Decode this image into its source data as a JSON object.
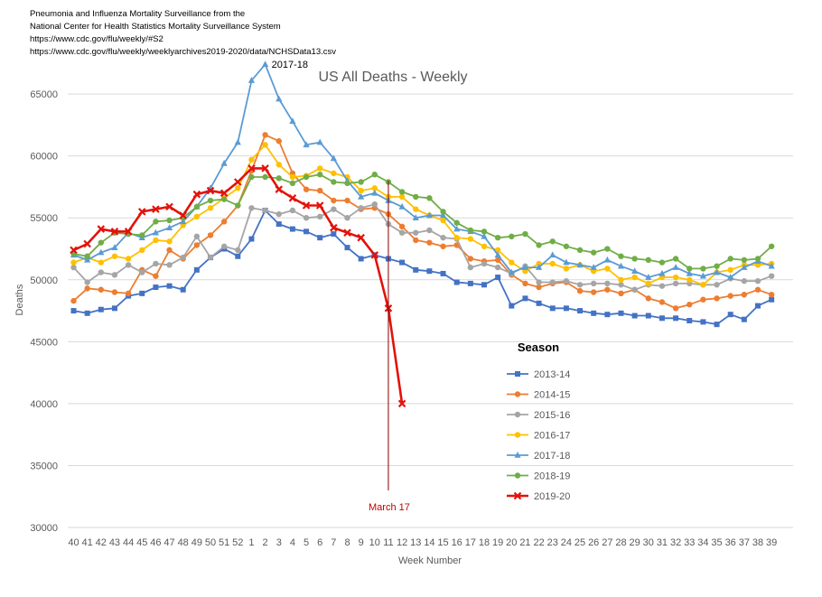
{
  "source": {
    "lines": [
      "Pneumonia and Influenza Mortality Surveillance from the",
      "National Center for Health Statistics Mortality Surveillance System",
      "https://www.cdc.gov/flu/weekly/#S2",
      "https://www.cdc.gov/flu/weekly/weeklyarchives2019-2020/data/NCHSData13.csv"
    ]
  },
  "chart_data": {
    "type": "line",
    "title": "US All Deaths - Weekly",
    "xlabel": "Week Number",
    "ylabel": "Deaths",
    "ylim": [
      30000,
      68000
    ],
    "yticks": [
      30000,
      35000,
      40000,
      45000,
      50000,
      55000,
      60000,
      65000
    ],
    "categories": [
      "40",
      "41",
      "42",
      "43",
      "44",
      "45",
      "46",
      "47",
      "48",
      "49",
      "50",
      "51",
      "52",
      "1",
      "2",
      "3",
      "4",
      "5",
      "6",
      "7",
      "8",
      "9",
      "10",
      "11",
      "12",
      "13",
      "14",
      "15",
      "16",
      "17",
      "18",
      "19",
      "20",
      "21",
      "22",
      "23",
      "24",
      "25",
      "26",
      "27",
      "28",
      "29",
      "30",
      "31",
      "32",
      "33",
      "34",
      "35",
      "36",
      "37",
      "38",
      "39"
    ],
    "legend_title": "Season",
    "legend_position": "right",
    "grid": true,
    "series": [
      {
        "name": "2013-14",
        "color": "#4472C4",
        "marker": "square",
        "values": [
          47500,
          47300,
          47600,
          47700,
          48700,
          48900,
          49400,
          49500,
          49200,
          50800,
          51800,
          52500,
          51900,
          53300,
          55600,
          54500,
          54100,
          53900,
          53400,
          53700,
          52600,
          51700,
          52000,
          51700,
          51400,
          50800,
          50700,
          50500,
          49800,
          49700,
          49600,
          50200,
          47900,
          48500,
          48100,
          47700,
          47700,
          47500,
          47300,
          47200,
          47300,
          47100,
          47100,
          46900,
          46900,
          46700,
          46600,
          46400,
          47200,
          46800,
          47900,
          48400
        ]
      },
      {
        "name": "2014-15",
        "color": "#ED7D31",
        "marker": "circle",
        "values": [
          48300,
          49300,
          49200,
          49000,
          48900,
          50800,
          50300,
          52400,
          51700,
          52800,
          53600,
          54700,
          56000,
          58800,
          61700,
          61200,
          58600,
          57300,
          57200,
          56400,
          56400,
          55700,
          55800,
          55300,
          54300,
          53200,
          53000,
          52700,
          52800,
          51700,
          51500,
          51600,
          50400,
          49700,
          49400,
          49700,
          49800,
          49100,
          49000,
          49200,
          48900,
          49200,
          48500,
          48200,
          47700,
          48000,
          48400,
          48500,
          48700,
          48800,
          49200,
          48800
        ]
      },
      {
        "name": "2015-16",
        "color": "#A5A5A5",
        "marker": "circle",
        "values": [
          51000,
          49800,
          50600,
          50400,
          51200,
          50600,
          51300,
          51200,
          51800,
          53500,
          51800,
          52700,
          52400,
          55800,
          55600,
          55300,
          55600,
          55000,
          55100,
          55700,
          55000,
          55800,
          56100,
          54500,
          53800,
          53800,
          54000,
          53400,
          53300,
          51000,
          51300,
          51000,
          50500,
          51100,
          49800,
          49800,
          49900,
          49600,
          49700,
          49700,
          49600,
          49200,
          49600,
          49500,
          49700,
          49700,
          49600,
          49600,
          50100,
          49900,
          49900,
          50300
        ]
      },
      {
        "name": "2016-17",
        "color": "#FFC000",
        "marker": "circle",
        "values": [
          51400,
          51800,
          51400,
          51900,
          51700,
          52400,
          53200,
          53100,
          54400,
          55100,
          55800,
          56600,
          57400,
          59700,
          60900,
          59300,
          58300,
          58400,
          59000,
          58600,
          58300,
          57200,
          57400,
          56700,
          56700,
          55700,
          55200,
          54800,
          53400,
          53300,
          52700,
          52400,
          51400,
          50700,
          51300,
          51300,
          50900,
          51200,
          50700,
          50900,
          50000,
          50200,
          49700,
          50200,
          50200,
          50000,
          49600,
          50600,
          50800,
          51200,
          51200,
          51300
        ]
      },
      {
        "name": "2017-18",
        "color": "#5B9BD5",
        "marker": "triangle",
        "values": [
          52000,
          51600,
          52200,
          52600,
          53800,
          53400,
          53800,
          54200,
          54700,
          55900,
          57400,
          59400,
          61100,
          66100,
          67400,
          64600,
          62800,
          60900,
          61100,
          59800,
          58000,
          56700,
          57000,
          56400,
          55900,
          55000,
          55200,
          55200,
          54100,
          53900,
          53500,
          52000,
          50600,
          51000,
          51000,
          52000,
          51400,
          51200,
          51000,
          51600,
          51100,
          50700,
          50200,
          50500,
          51000,
          50500,
          50300,
          50600,
          50200,
          51000,
          51500,
          51100
        ]
      },
      {
        "name": "2018-19",
        "color": "#70AD47",
        "marker": "circle",
        "values": [
          52100,
          51900,
          53000,
          53800,
          53700,
          53600,
          54700,
          54800,
          55000,
          55900,
          56400,
          56500,
          56000,
          58300,
          58300,
          58200,
          57800,
          58300,
          58500,
          57900,
          57800,
          57900,
          58500,
          57900,
          57100,
          56700,
          56600,
          55500,
          54600,
          54000,
          53900,
          53400,
          53500,
          53700,
          52800,
          53100,
          52700,
          52400,
          52200,
          52500,
          51900,
          51700,
          51600,
          51400,
          51700,
          50900,
          50900,
          51100,
          51700,
          51600,
          51700,
          52700
        ]
      },
      {
        "name": "2019-20",
        "color": "#E3120B",
        "marker": "x",
        "values": [
          52400,
          52900,
          54100,
          53900,
          53900,
          55500,
          55700,
          55900,
          55200,
          56900,
          57200,
          57000,
          57900,
          59000,
          59000,
          57300,
          56600,
          56000,
          56000,
          54200,
          53800,
          53400,
          52000,
          47700,
          40000,
          null,
          null,
          null,
          null,
          null,
          null,
          null,
          null,
          null,
          null,
          null,
          null,
          null,
          null,
          null,
          null,
          null,
          null,
          null,
          null,
          null,
          null,
          null,
          null,
          null,
          null,
          null
        ]
      }
    ],
    "annotations": [
      {
        "text": "2017-18",
        "at_category": "2",
        "series": "2017-18"
      },
      {
        "text": "March 17",
        "at_category": "11"
      }
    ]
  }
}
